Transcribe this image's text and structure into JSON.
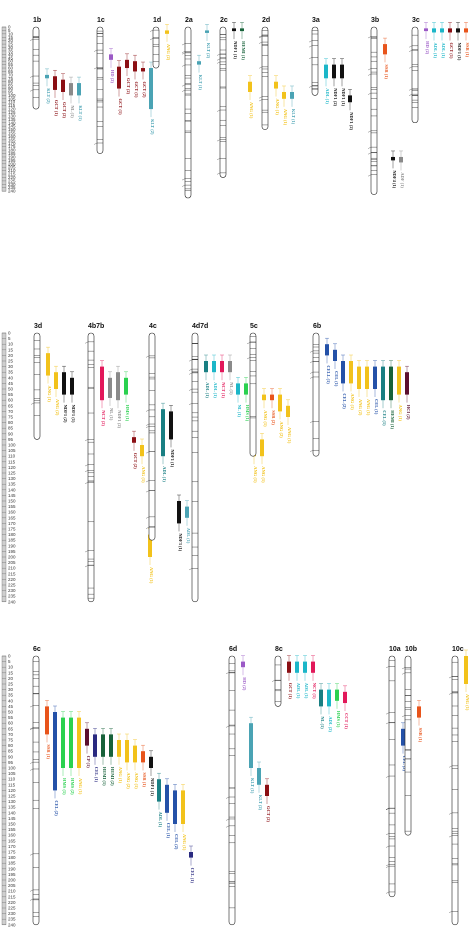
{
  "scale": {
    "ticks": [
      "0",
      "5",
      "10",
      "15",
      "20",
      "25",
      "30",
      "35",
      "40",
      "45",
      "50",
      "55",
      "60",
      "65",
      "70",
      "75",
      "80",
      "85",
      "90",
      "95",
      "100",
      "105",
      "110",
      "115",
      "120",
      "125",
      "130",
      "135",
      "140",
      "145",
      "150",
      "155",
      "160",
      "165",
      "170",
      "175",
      "180",
      "185",
      "190",
      "195",
      "200",
      "205",
      "210",
      "215",
      "220",
      "225",
      "230",
      "235",
      "240"
    ]
  },
  "traits": {
    "SSR": "#e8541b",
    "HD": "#9b59c6",
    "ADL": "#1bb6c8",
    "NDF": "#111111",
    "KL": "#4aa3b4",
    "GCT": "#8b0f14",
    "HEMI": "#17623a",
    "CEL": "#2451a8",
    "ANG": "#f2c21b",
    "NC": "#e2185a",
    "NL": "#8a8a8a",
    "UCH": "#2a2a80",
    "HMS": "#2ad14f",
    "CP": "#5c0f2f",
    "ACE": "#197f83",
    "DA": "#f2a21b"
  },
  "groups": [
    {
      "name": "1b",
      "qtl": [
        {
          "label": "KLT (2)",
          "trait": "KL",
          "start": 70,
          "end": 75
        },
        {
          "label": "GCT (1)",
          "trait": "GCT",
          "start": 72,
          "end": 92
        },
        {
          "label": "GCT (2)",
          "trait": "GCT",
          "start": 77,
          "end": 95
        },
        {
          "label": "NL (1)",
          "trait": "NL",
          "start": 82,
          "end": 100
        },
        {
          "label": "KLT (1)",
          "trait": "KL",
          "start": 82,
          "end": 100
        }
      ]
    },
    {
      "name": "1c",
      "qtl": [
        {
          "label": "HD (2)",
          "trait": "HD",
          "start": 40,
          "end": 48
        },
        {
          "label": "GCT (1)",
          "trait": "GCT",
          "start": 58,
          "end": 90
        },
        {
          "label": "GCT (2)",
          "trait": "GCT",
          "start": 48,
          "end": 60
        },
        {
          "label": "GCT (1)",
          "trait": "GCT",
          "start": 50,
          "end": 65
        },
        {
          "label": "GCT (2)",
          "trait": "GCT",
          "start": 60,
          "end": 65
        },
        {
          "label": "KLT (2)",
          "trait": "KL",
          "start": 60,
          "end": 120
        }
      ]
    },
    {
      "name": "1d",
      "qtl": [
        {
          "label": "ANG (2)",
          "trait": "ANG",
          "start": 5,
          "end": 10
        }
      ]
    },
    {
      "name": "2a",
      "qtl": [
        {
          "label": "KLT (1)",
          "trait": "KL",
          "start": 50,
          "end": 55
        },
        {
          "label": "KLT (2)",
          "trait": "KL",
          "start": 5,
          "end": 8
        }
      ]
    },
    {
      "name": "2c",
      "qtl": [
        {
          "label": "NDF1 (1)",
          "trait": "NDF",
          "start": 2,
          "end": 6
        },
        {
          "label": "HEMI (1)",
          "trait": "HEMI",
          "start": 2,
          "end": 6
        },
        {
          "label": "ANG (1)",
          "trait": "ANG",
          "start": 80,
          "end": 95
        }
      ]
    },
    {
      "name": "2d",
      "qtl": [
        {
          "label": "ANG (1)",
          "trait": "ANG",
          "start": 80,
          "end": 90
        },
        {
          "label": "ANG (1)",
          "trait": "ANG",
          "start": 95,
          "end": 105
        },
        {
          "label": "KLT (1)",
          "trait": "KL",
          "start": 95,
          "end": 105
        }
      ]
    },
    {
      "name": "3a",
      "qtl": [
        {
          "label": "ADL (1)",
          "trait": "ADL",
          "start": 55,
          "end": 75
        },
        {
          "label": "NDF1 (2)",
          "trait": "NDF",
          "start": 55,
          "end": 75
        },
        {
          "label": "NDF1 (1)",
          "trait": "NDF",
          "start": 55,
          "end": 75
        },
        {
          "label": "NDF1 (2)",
          "trait": "NDF",
          "start": 100,
          "end": 110
        }
      ]
    },
    {
      "name": "3b",
      "qtl": [
        {
          "label": "SSR (1)",
          "trait": "SSR",
          "start": 25,
          "end": 40
        },
        {
          "label": "NDF4 (1)",
          "trait": "NDF",
          "start": 190,
          "end": 195
        },
        {
          "label": "ADF (1)",
          "trait": "NL",
          "start": 190,
          "end": 198
        }
      ]
    },
    {
      "name": "3c",
      "qtl": [
        {
          "label": "HD (2)",
          "trait": "HD",
          "start": 2,
          "end": 6
        },
        {
          "label": "ADL (1)",
          "trait": "ADL",
          "start": 2,
          "end": 8
        },
        {
          "label": "ADL (1)",
          "trait": "ADL",
          "start": 2,
          "end": 8
        },
        {
          "label": "GCT (1)",
          "trait": "GCT",
          "start": 2,
          "end": 8
        },
        {
          "label": "NDF1 (1)",
          "trait": "NDF",
          "start": 2,
          "end": 8
        },
        {
          "label": "SSR (1)",
          "trait": "SSR",
          "start": 2,
          "end": 8
        }
      ]
    },
    {
      "name": "3d",
      "qtl": [
        {
          "label": "ANG (1)",
          "trait": "ANG",
          "start": 18,
          "end": 38
        },
        {
          "label": "ANG (2)",
          "trait": "ANG",
          "start": 35,
          "end": 50
        },
        {
          "label": "NDF1 (2)",
          "trait": "NDF",
          "start": 35,
          "end": 55
        },
        {
          "label": "NDF1 (1)",
          "trait": "NDF",
          "start": 40,
          "end": 55
        }
      ]
    },
    {
      "name": "4b7b",
      "qtl": [
        {
          "label": "NCT (2)",
          "trait": "NC",
          "start": 30,
          "end": 60
        },
        {
          "label": "NL (1)",
          "trait": "NL",
          "start": 40,
          "end": 58
        },
        {
          "label": "NDF1 (2)",
          "trait": "NL",
          "start": 35,
          "end": 60
        },
        {
          "label": "HMS (1)",
          "trait": "HMS",
          "start": 40,
          "end": 55
        },
        {
          "label": "GCT (2)",
          "trait": "GCT",
          "start": 93,
          "end": 98
        },
        {
          "label": "ANG (1)",
          "trait": "ANG",
          "start": 100,
          "end": 110
        },
        {
          "label": "ANG (1)",
          "trait": "ANG",
          "start": 180,
          "end": 200
        }
      ]
    },
    {
      "name": "4c",
      "qtl": [
        {
          "label": "ADL (1)",
          "trait": "ACE",
          "start": 68,
          "end": 110
        },
        {
          "label": "NDF1 (1)",
          "trait": "NDF",
          "start": 70,
          "end": 95
        },
        {
          "label": "NDF3 (1)",
          "trait": "NDF",
          "start": 150,
          "end": 170
        },
        {
          "label": "ADL (1)",
          "trait": "KL",
          "start": 155,
          "end": 165
        }
      ]
    },
    {
      "name": "4d7d",
      "qtl": [
        {
          "label": "ADL (1)",
          "trait": "ACE",
          "start": 25,
          "end": 35
        },
        {
          "label": "ADL (1)",
          "trait": "ADL",
          "start": 25,
          "end": 35
        },
        {
          "label": "NCT (1)",
          "trait": "NC",
          "start": 25,
          "end": 35
        },
        {
          "label": "NL (1)",
          "trait": "NL",
          "start": 25,
          "end": 35
        },
        {
          "label": "NL (1)",
          "trait": "ADL",
          "start": 45,
          "end": 55
        },
        {
          "label": "HMS (1)",
          "trait": "HMS",
          "start": 45,
          "end": 55
        },
        {
          "label": "ANG (1)",
          "trait": "ANG",
          "start": 95,
          "end": 110
        },
        {
          "label": "ANG (1)",
          "trait": "ANG",
          "start": 95,
          "end": 110
        }
      ]
    },
    {
      "name": "5c",
      "qtl": [
        {
          "label": "ANG (1)",
          "trait": "ANG",
          "start": 55,
          "end": 60
        },
        {
          "label": "SSR (2)",
          "trait": "SSR",
          "start": 55,
          "end": 60
        },
        {
          "label": "ANG (2)",
          "trait": "ANG",
          "start": 55,
          "end": 70
        },
        {
          "label": "ANG (1)",
          "trait": "ANG",
          "start": 65,
          "end": 75
        }
      ]
    },
    {
      "name": "6b",
      "qtl": [
        {
          "label": "CELL (1)",
          "trait": "CEL",
          "start": 10,
          "end": 20
        },
        {
          "label": "CEL (1)",
          "trait": "CEL",
          "start": 15,
          "end": 25
        },
        {
          "label": "CEL (2)",
          "trait": "CEL",
          "start": 25,
          "end": 45
        },
        {
          "label": "ANG (1)",
          "trait": "ANG",
          "start": 25,
          "end": 45
        },
        {
          "label": "ANG (2)",
          "trait": "ANG",
          "start": 30,
          "end": 50
        },
        {
          "label": "ANG (1)",
          "trait": "ANG",
          "start": 30,
          "end": 50
        },
        {
          "label": "CEL (1)",
          "trait": "CEL",
          "start": 30,
          "end": 50
        },
        {
          "label": "CEL (1)",
          "trait": "ACE",
          "start": 30,
          "end": 60
        },
        {
          "label": "HEMI (1)",
          "trait": "HEMI",
          "start": 30,
          "end": 60
        },
        {
          "label": "ANG (1)",
          "trait": "ANG",
          "start": 30,
          "end": 55
        },
        {
          "label": "HCI (2)",
          "trait": "CP",
          "start": 35,
          "end": 55
        }
      ]
    },
    {
      "name": "6c",
      "qtl": [
        {
          "label": "SSR (1)",
          "trait": "SSR",
          "start": 45,
          "end": 70
        },
        {
          "label": "CEL (2)",
          "trait": "CEL",
          "start": 50,
          "end": 120
        },
        {
          "label": "HMS (1)",
          "trait": "HMS",
          "start": 55,
          "end": 100
        },
        {
          "label": "HMS (2)",
          "trait": "HMS",
          "start": 55,
          "end": 100
        },
        {
          "label": "ANG (1)",
          "trait": "ANG",
          "start": 55,
          "end": 100
        },
        {
          "label": "CP (1)",
          "trait": "CP",
          "start": 65,
          "end": 80
        },
        {
          "label": "CEL (1)",
          "trait": "UCH",
          "start": 70,
          "end": 90
        },
        {
          "label": "HEMI (1)",
          "trait": "HEMI",
          "start": 70,
          "end": 90
        },
        {
          "label": "HEMI (2)",
          "trait": "HEMI",
          "start": 70,
          "end": 90
        },
        {
          "label": "ANG (1)",
          "trait": "ANG",
          "start": 75,
          "end": 90
        },
        {
          "label": "ANG (2)",
          "trait": "ANG",
          "start": 75,
          "end": 95
        },
        {
          "label": "ANG (1)",
          "trait": "ANG",
          "start": 80,
          "end": 95
        },
        {
          "label": "SSR (1)",
          "trait": "SSR",
          "start": 85,
          "end": 95
        },
        {
          "label": "NDF1 (1)",
          "trait": "NDF",
          "start": 90,
          "end": 100
        },
        {
          "label": "ADL (1)",
          "trait": "ACE",
          "start": 110,
          "end": 130
        },
        {
          "label": "CEL (1)",
          "trait": "CEL",
          "start": 115,
          "end": 140
        },
        {
          "label": "CEL (2)",
          "trait": "CEL",
          "start": 120,
          "end": 150
        },
        {
          "label": "ANG (1)",
          "trait": "ANG",
          "start": 120,
          "end": 150
        },
        {
          "label": "CEL (1)",
          "trait": "UCH",
          "start": 175,
          "end": 180
        }
      ]
    },
    {
      "name": "6d",
      "qtl": [
        {
          "label": "HD (2)",
          "trait": "HD",
          "start": 5,
          "end": 10
        },
        {
          "label": "KLT (1)",
          "trait": "KL",
          "start": 60,
          "end": 100
        },
        {
          "label": "KLT (2)",
          "trait": "KL",
          "start": 100,
          "end": 115
        },
        {
          "label": "GCT (2)",
          "trait": "GCT",
          "start": 115,
          "end": 125
        }
      ]
    },
    {
      "name": "8c",
      "qtl": [
        {
          "label": "GCT (1)",
          "trait": "GCT",
          "start": 5,
          "end": 15
        },
        {
          "label": "ADL (1)",
          "trait": "ADL",
          "start": 5,
          "end": 15
        },
        {
          "label": "ADL (1)",
          "trait": "ADL",
          "start": 5,
          "end": 15
        },
        {
          "label": "NCT (1)",
          "trait": "NC",
          "start": 5,
          "end": 15
        },
        {
          "label": "NL (1)",
          "trait": "ACE",
          "start": 30,
          "end": 45
        },
        {
          "label": "ADL (2)",
          "trait": "ADL",
          "start": 30,
          "end": 45
        },
        {
          "label": "HMS (1)",
          "trait": "HMS",
          "start": 30,
          "end": 40
        },
        {
          "label": "CCT (1)",
          "trait": "NC",
          "start": 32,
          "end": 42
        }
      ]
    },
    {
      "name": "10a",
      "qtl": [
        {
          "label": "CEL (2)",
          "trait": "CEL",
          "start": 65,
          "end": 80
        }
      ]
    },
    {
      "name": "10b",
      "qtl": [
        {
          "label": "SSR (1)",
          "trait": "SSR",
          "start": 45,
          "end": 55
        }
      ]
    },
    {
      "name": "10c",
      "qtl": [
        {
          "label": "ANG (1)",
          "trait": "ANG",
          "start": 0,
          "end": 25
        }
      ]
    }
  ]
}
